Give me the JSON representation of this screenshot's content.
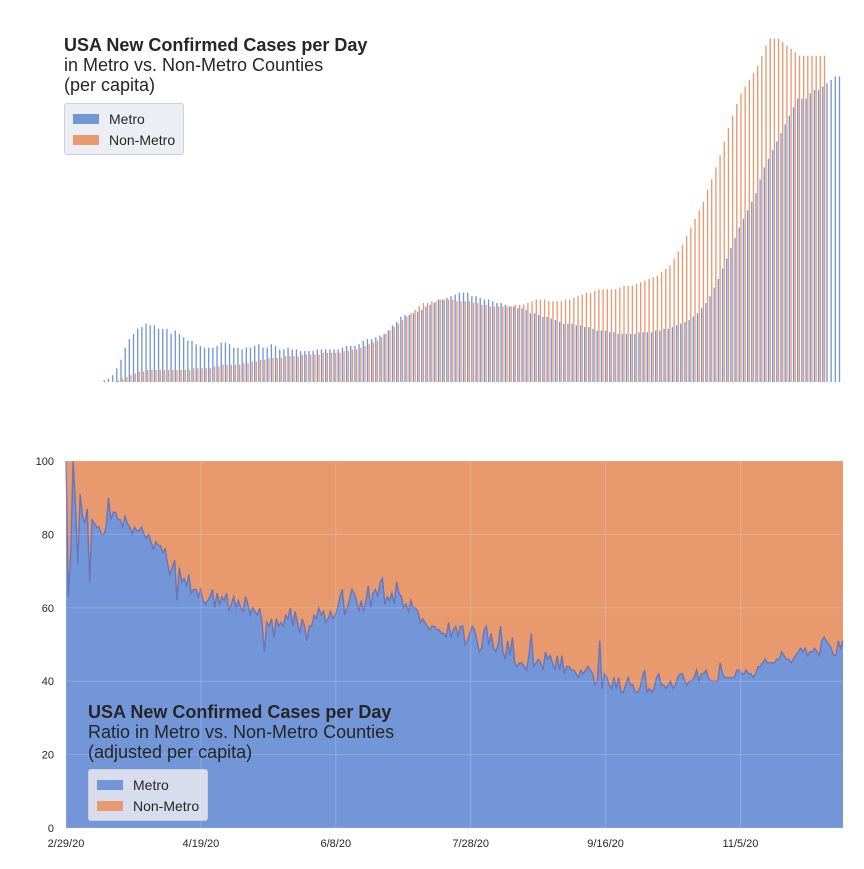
{
  "colors": {
    "metro": "#7396d8",
    "nonmetro": "#e8996e",
    "grid": "#ffffff",
    "axis_text": "#262626"
  },
  "top": {
    "title": "USA New Confirmed Cases per Day",
    "subtitle_1": "in Metro vs. Non-Metro Counties",
    "subtitle_2": "(per capita)",
    "legend": [
      {
        "label": "Metro"
      },
      {
        "label": "Non-Metro"
      }
    ]
  },
  "bottom": {
    "title": "USA New Confirmed Cases per Day",
    "subtitle_1": "Ratio in Metro vs. Non-Metro Counties",
    "subtitle_2": "(adjusted per capita)",
    "legend": [
      {
        "label": "Metro"
      },
      {
        "label": "Non-Metro"
      }
    ]
  },
  "chart_data": [
    {
      "type": "bar",
      "title": "USA New Confirmed Cases per Day in Metro vs. Non-Metro Counties (per capita)",
      "x_range": [
        "2/29/20",
        "12/13/20"
      ],
      "x_ticks": [],
      "y_ticks": [],
      "grid": false,
      "legend_position": "top-left",
      "series": [
        {
          "name": "Metro",
          "values": [
            0,
            0,
            0,
            0,
            0,
            0,
            0,
            0,
            0,
            1,
            2,
            4,
            8,
            13,
            20,
            25,
            28,
            31,
            32,
            34,
            33,
            33,
            31,
            31,
            31,
            28,
            30,
            28,
            26,
            24,
            24,
            22,
            21,
            20,
            20,
            20,
            21,
            23,
            23,
            22,
            20,
            20,
            19,
            20,
            20,
            21,
            22,
            20,
            20,
            22,
            21,
            19,
            19,
            20,
            19,
            19,
            18,
            18,
            18,
            18,
            19,
            19,
            19,
            19,
            19,
            19,
            20,
            21,
            21,
            21,
            22,
            24,
            25,
            25,
            26,
            27,
            28,
            30,
            33,
            35,
            38,
            39,
            39,
            40,
            41,
            42,
            44,
            45,
            46,
            48,
            48,
            49,
            50,
            51,
            52,
            52,
            52,
            50,
            50,
            49,
            48,
            48,
            47,
            46,
            46,
            45,
            44,
            44,
            43,
            43,
            42,
            40,
            40,
            39,
            38,
            38,
            37,
            36,
            35,
            34,
            34,
            34,
            33,
            33,
            32,
            32,
            31,
            30,
            30,
            30,
            29,
            29,
            28,
            28,
            28,
            28,
            28,
            29,
            29,
            29,
            29,
            30,
            30,
            31,
            31,
            32,
            33,
            34,
            35,
            36,
            38,
            40,
            43,
            46,
            50,
            55,
            60,
            66,
            72,
            78,
            84,
            90,
            95,
            100,
            105,
            110,
            118,
            125,
            130,
            135,
            140,
            145,
            150,
            155,
            160,
            165,
            165,
            165,
            168,
            170,
            170,
            172,
            174,
            176,
            178,
            178
          ]
        },
        {
          "name": "Non-Metro",
          "values": [
            0,
            0,
            0,
            0,
            0,
            0,
            0,
            0,
            0,
            0,
            0,
            0,
            1,
            2,
            3,
            4,
            5,
            6,
            6,
            7,
            7,
            7,
            7,
            7,
            7,
            7,
            7,
            7,
            7,
            7,
            8,
            8,
            8,
            8,
            8,
            9,
            9,
            10,
            10,
            10,
            10,
            10,
            11,
            11,
            12,
            12,
            13,
            13,
            14,
            14,
            14,
            14,
            15,
            15,
            15,
            15,
            16,
            16,
            16,
            16,
            16,
            17,
            17,
            17,
            17,
            17,
            18,
            18,
            19,
            19,
            20,
            21,
            22,
            23,
            24,
            26,
            28,
            30,
            32,
            34,
            36,
            38,
            40,
            42,
            44,
            46,
            46,
            47,
            47,
            48,
            48,
            48,
            48,
            47,
            47,
            47,
            47,
            46,
            46,
            45,
            45,
            44,
            44,
            44,
            44,
            44,
            44,
            45,
            45,
            45,
            46,
            47,
            48,
            48,
            48,
            47,
            47,
            47,
            47,
            48,
            48,
            49,
            50,
            51,
            52,
            52,
            53,
            54,
            54,
            54,
            54,
            54,
            55,
            56,
            56,
            56,
            57,
            58,
            59,
            60,
            61,
            62,
            64,
            66,
            68,
            72,
            76,
            80,
            85,
            90,
            95,
            100,
            105,
            112,
            118,
            125,
            132,
            140,
            148,
            155,
            162,
            168,
            172,
            176,
            180,
            184,
            190,
            196,
            200,
            200,
            200,
            198,
            196,
            194,
            192,
            190,
            190,
            190,
            190,
            190,
            190,
            190
          ]
        }
      ]
    },
    {
      "type": "area",
      "title": "USA New Confirmed Cases per Day Ratio in Metro vs. Non-Metro Counties (adjusted per capita)",
      "x_ticks": [
        "2/29/20",
        "4/19/20",
        "6/8/20",
        "7/28/20",
        "9/16/20",
        "11/5/20"
      ],
      "y_ticks": [
        0,
        20,
        40,
        60,
        80,
        100
      ],
      "ylim": [
        0,
        100
      ],
      "grid": true,
      "legend_position": "bottom-left",
      "x_start": "2/29/20",
      "x_end": "12/13/20",
      "series": [
        {
          "name": "Metro",
          "values": [
            100,
            63,
            75,
            100,
            88,
            72,
            91,
            85,
            83,
            87,
            67,
            84,
            83,
            82,
            82,
            80,
            80,
            82,
            90,
            84,
            86,
            86,
            84,
            84,
            82,
            85,
            83,
            82,
            80,
            82,
            81,
            81,
            82,
            80,
            79,
            80,
            78,
            76,
            78,
            77,
            77,
            75,
            76,
            72,
            69,
            71,
            73,
            62,
            71,
            67,
            68,
            66,
            69,
            64,
            65,
            65,
            63,
            65,
            62,
            61,
            62,
            63,
            65,
            60,
            64,
            61,
            63,
            62,
            64,
            59,
            61,
            63,
            60,
            62,
            60,
            59,
            63,
            61,
            58,
            60,
            59,
            58,
            60,
            56,
            48,
            56,
            55,
            57,
            52,
            57,
            55,
            56,
            55,
            58,
            57,
            60,
            55,
            59,
            56,
            53,
            57,
            55,
            51,
            55,
            55,
            58,
            57,
            60,
            58,
            59,
            56,
            57,
            59,
            57,
            58,
            60,
            63,
            65,
            58,
            60,
            62,
            65,
            64,
            62,
            59,
            62,
            59,
            62,
            66,
            60,
            64,
            65,
            63,
            67,
            68,
            61,
            63,
            62,
            64,
            61,
            67,
            64,
            63,
            60,
            61,
            59,
            62,
            60,
            60,
            59,
            56,
            57,
            56,
            55,
            54,
            55,
            55,
            54,
            54,
            53,
            53,
            52,
            56,
            52,
            54,
            55,
            52,
            55,
            55,
            50,
            51,
            53,
            55,
            54,
            51,
            48,
            49,
            54,
            55,
            50,
            53,
            49,
            48,
            50,
            55,
            48,
            46,
            51,
            47,
            52,
            45,
            44,
            45,
            45,
            44,
            43,
            47,
            53,
            44,
            45,
            46,
            45,
            43,
            48,
            46,
            47,
            45,
            43,
            47,
            43,
            47,
            42,
            44,
            44,
            43,
            43,
            42,
            41,
            43,
            42,
            43,
            44,
            43,
            42,
            39,
            40,
            51,
            38,
            42,
            41,
            39,
            38,
            41,
            38,
            41,
            37,
            37,
            39,
            41,
            39,
            39,
            37,
            37,
            38,
            41,
            43,
            37,
            38,
            37,
            38,
            41,
            42,
            39,
            39,
            38,
            39,
            40,
            38,
            39,
            41,
            42,
            42,
            40,
            39,
            40,
            40,
            41,
            43,
            40,
            42,
            42,
            43,
            41,
            40,
            40,
            40,
            40,
            45,
            42,
            41,
            41,
            41,
            41,
            41,
            43,
            43,
            42,
            42,
            43,
            42,
            42,
            41,
            42,
            44,
            44,
            45,
            46,
            45,
            45,
            45,
            45,
            46,
            46,
            48,
            47,
            46,
            46,
            45,
            46,
            47,
            48,
            49,
            48,
            49,
            47,
            48,
            48,
            49,
            48,
            47,
            51,
            52,
            51,
            50,
            49,
            47,
            47,
            51,
            49,
            51
          ]
        },
        {
          "name": "Non-Metro",
          "fill_to": 100
        }
      ]
    }
  ]
}
